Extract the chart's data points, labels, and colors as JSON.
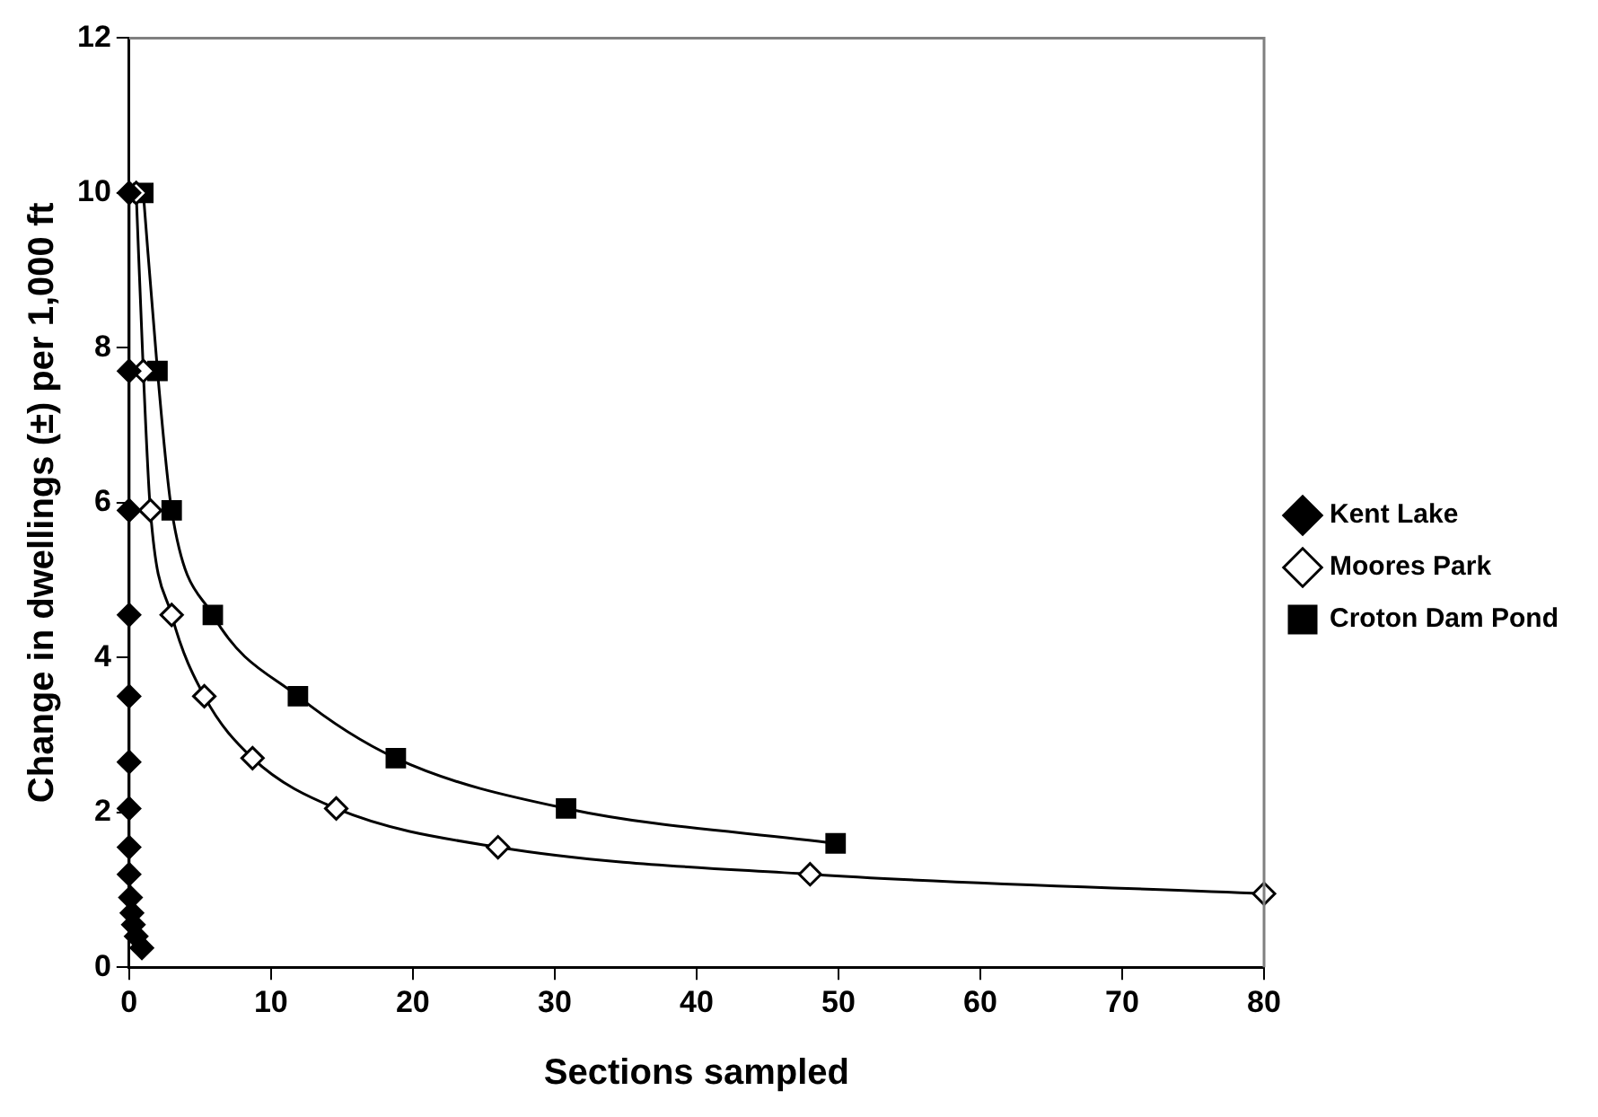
{
  "chart_data": {
    "type": "line",
    "xlabel": "Sections sampled",
    "ylabel": "Change in dwellings (±) per 1,000 ft",
    "xlim": [
      0,
      80
    ],
    "xticks": [
      0,
      10,
      20,
      30,
      40,
      50,
      60,
      70,
      80
    ],
    "ylim": [
      0,
      12
    ],
    "yticks": [
      0,
      2,
      4,
      6,
      8,
      10,
      12
    ],
    "grid": false,
    "legend": "right",
    "series": [
      {
        "name": "Kent Lake",
        "color": "#000000",
        "marker": "diamond",
        "x": [
          0,
          0,
          0,
          0,
          0,
          0,
          0,
          0,
          0,
          0.1,
          0.2,
          0.3,
          0.5,
          0.9
        ],
        "values": [
          10,
          7.7,
          5.9,
          4.55,
          3.5,
          2.65,
          2.05,
          1.55,
          1.2,
          0.9,
          0.7,
          0.55,
          0.4,
          0.25
        ]
      },
      {
        "name": "Moores Park",
        "color": "#000000",
        "marker": "diamond",
        "x": [
          0.5,
          1,
          1.5,
          3,
          5.3,
          8.7,
          14.6,
          26,
          48,
          80
        ],
        "values": [
          10,
          7.7,
          5.9,
          4.55,
          3.5,
          2.7,
          2.05,
          1.55,
          1.2,
          0.95
        ]
      },
      {
        "name": "Croton Dam Pond",
        "color": "#000000",
        "marker": "square",
        "x": [
          1,
          2,
          3,
          5.9,
          11.9,
          18.8,
          30.8,
          49.8
        ],
        "values": [
          10,
          7.7,
          5.9,
          4.55,
          3.5,
          2.7,
          2.05,
          1.6
        ]
      }
    ]
  }
}
